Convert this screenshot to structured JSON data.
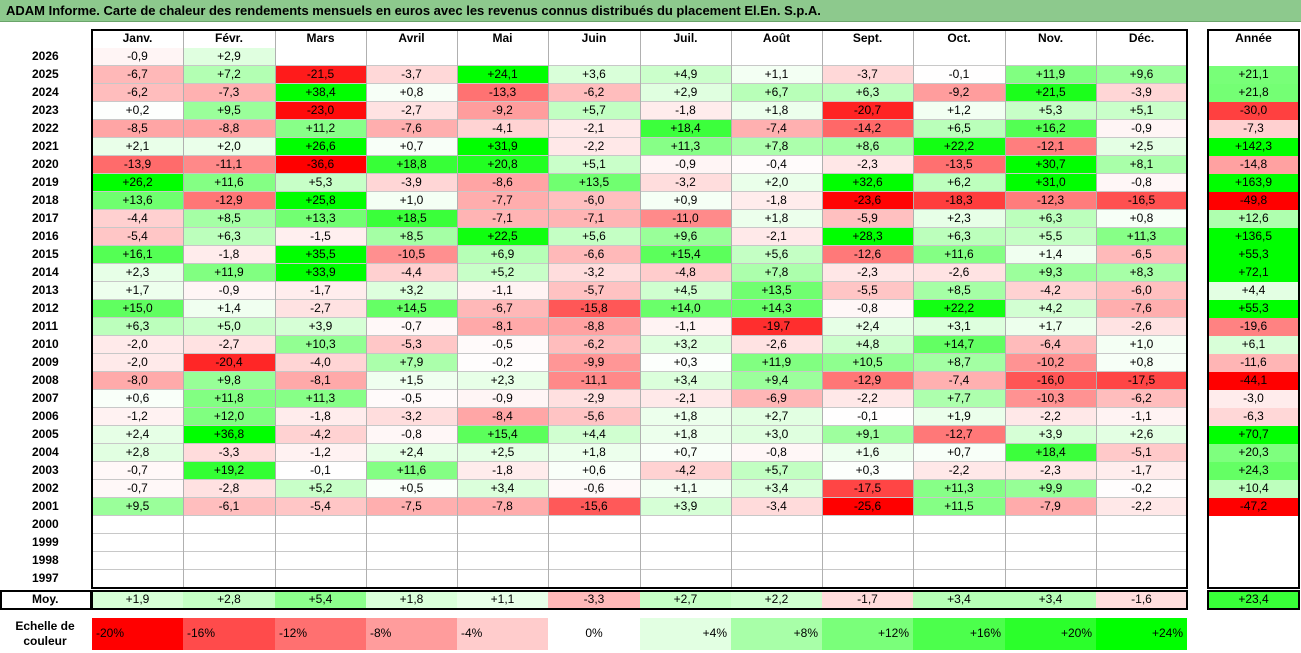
{
  "title": "ADAM Informe. Carte de chaleur des rendements mensuels en euros avec les revenus connus distribués du placement El.En. S.p.A.",
  "chart_data": {
    "type": "heatmap",
    "months": [
      "Janv.",
      "Févr.",
      "Mars",
      "Avril",
      "Mai",
      "Juin",
      "Juil.",
      "Août",
      "Sept.",
      "Oct.",
      "Nov.",
      "Déc."
    ],
    "year_header": "Année",
    "rows": [
      {
        "year": "2026",
        "values": [
          "-0,9",
          "+2,9",
          "",
          "",
          "",
          "",
          "",
          "",
          "",
          "",
          "",
          ""
        ],
        "annual": ""
      },
      {
        "year": "2025",
        "values": [
          "-6,7",
          "+7,2",
          "-21,5",
          "-3,7",
          "+24,1",
          "+3,6",
          "+4,9",
          "+1,1",
          "-3,7",
          "-0,1",
          "+11,9",
          "+9,6"
        ],
        "annual": "+21,1"
      },
      {
        "year": "2024",
        "values": [
          "-6,2",
          "-7,3",
          "+38,4",
          "+0,8",
          "-13,3",
          "-6,2",
          "+2,9",
          "+6,7",
          "+6,3",
          "-9,2",
          "+21,5",
          "-3,9"
        ],
        "annual": "+21,8"
      },
      {
        "year": "2023",
        "values": [
          "+0,2",
          "+9,5",
          "-23,0",
          "-2,7",
          "-9,2",
          "+5,7",
          "-1,8",
          "+1,8",
          "-20,7",
          "+1,2",
          "+5,3",
          "+5,1"
        ],
        "annual": "-30,0"
      },
      {
        "year": "2022",
        "values": [
          "-8,5",
          "-8,8",
          "+11,2",
          "-7,6",
          "-4,1",
          "-2,1",
          "+18,4",
          "-7,4",
          "-14,2",
          "+6,5",
          "+16,2",
          "-0,9"
        ],
        "annual": "-7,3"
      },
      {
        "year": "2021",
        "values": [
          "+2,1",
          "+2,0",
          "+26,6",
          "+0,7",
          "+31,9",
          "-2,2",
          "+11,3",
          "+7,8",
          "+8,6",
          "+22,2",
          "-12,1",
          "+2,5"
        ],
        "annual": "+142,3"
      },
      {
        "year": "2020",
        "values": [
          "-13,9",
          "-11,1",
          "-36,6",
          "+18,8",
          "+20,8",
          "+5,1",
          "-0,9",
          "-0,4",
          "-2,3",
          "-13,5",
          "+30,7",
          "+8,1"
        ],
        "annual": "-14,8"
      },
      {
        "year": "2019",
        "values": [
          "+26,2",
          "+11,6",
          "+5,3",
          "-3,9",
          "-8,6",
          "+13,5",
          "-3,2",
          "+2,0",
          "+32,6",
          "+6,2",
          "+31,0",
          "-0,8"
        ],
        "annual": "+163,9"
      },
      {
        "year": "2018",
        "values": [
          "+13,6",
          "-12,9",
          "+25,8",
          "+1,0",
          "-7,7",
          "-6,0",
          "+0,9",
          "-1,8",
          "-23,6",
          "-18,3",
          "-12,3",
          "-16,5"
        ],
        "annual": "-49,8"
      },
      {
        "year": "2017",
        "values": [
          "-4,4",
          "+8,5",
          "+13,3",
          "+18,5",
          "-7,1",
          "-7,1",
          "-11,0",
          "+1,8",
          "-5,9",
          "+2,3",
          "+6,3",
          "+0,8"
        ],
        "annual": "+12,6"
      },
      {
        "year": "2016",
        "values": [
          "-5,4",
          "+6,3",
          "-1,5",
          "+8,5",
          "+22,5",
          "+5,6",
          "+9,6",
          "-2,1",
          "+28,3",
          "+6,3",
          "+5,5",
          "+11,3"
        ],
        "annual": "+136,5"
      },
      {
        "year": "2015",
        "values": [
          "+16,1",
          "-1,8",
          "+35,5",
          "-10,5",
          "+6,9",
          "-6,6",
          "+15,4",
          "+5,6",
          "-12,6",
          "+11,6",
          "+1,4",
          "-6,5"
        ],
        "annual": "+55,3"
      },
      {
        "year": "2014",
        "values": [
          "+2,3",
          "+11,9",
          "+33,9",
          "-4,4",
          "+5,2",
          "-3,2",
          "-4,8",
          "+7,8",
          "-2,3",
          "-2,6",
          "+9,3",
          "+8,3"
        ],
        "annual": "+72,1"
      },
      {
        "year": "2013",
        "values": [
          "+1,7",
          "-0,9",
          "-1,7",
          "+3,2",
          "-1,1",
          "-5,7",
          "+4,5",
          "+13,5",
          "-5,5",
          "+8,5",
          "-4,2",
          "-6,0"
        ],
        "annual": "+4,4"
      },
      {
        "year": "2012",
        "values": [
          "+15,0",
          "+1,4",
          "-2,7",
          "+14,5",
          "-6,7",
          "-15,8",
          "+14,0",
          "+14,3",
          "-0,8",
          "+22,2",
          "+4,2",
          "-7,6"
        ],
        "annual": "+55,3"
      },
      {
        "year": "2011",
        "values": [
          "+6,3",
          "+5,0",
          "+3,9",
          "-0,7",
          "-8,1",
          "-8,8",
          "-1,1",
          "-19,7",
          "+2,4",
          "+3,1",
          "+1,7",
          "-2,6"
        ],
        "annual": "-19,6"
      },
      {
        "year": "2010",
        "values": [
          "-2,0",
          "-2,7",
          "+10,3",
          "-5,3",
          "-0,5",
          "-6,2",
          "+3,2",
          "-2,6",
          "+4,8",
          "+14,7",
          "-6,4",
          "+1,0"
        ],
        "annual": "+6,1"
      },
      {
        "year": "2009",
        "values": [
          "-2,0",
          "-20,4",
          "-4,0",
          "+7,9",
          "-0,2",
          "-9,9",
          "+0,3",
          "+11,9",
          "+10,5",
          "+8,7",
          "-10,2",
          "+0,8"
        ],
        "annual": "-11,6"
      },
      {
        "year": "2008",
        "values": [
          "-8,0",
          "+9,8",
          "-8,1",
          "+1,5",
          "+2,3",
          "-11,1",
          "+3,4",
          "+9,4",
          "-12,9",
          "-7,4",
          "-16,0",
          "-17,5"
        ],
        "annual": "-44,1"
      },
      {
        "year": "2007",
        "values": [
          "+0,6",
          "+11,8",
          "+11,3",
          "-0,5",
          "-0,9",
          "-2,9",
          "-2,1",
          "-6,9",
          "-2,2",
          "+7,7",
          "-10,3",
          "-6,2"
        ],
        "annual": "-3,0"
      },
      {
        "year": "2006",
        "values": [
          "-1,2",
          "+12,0",
          "-1,8",
          "-3,2",
          "-8,4",
          "-5,6",
          "+1,8",
          "+2,7",
          "-0,1",
          "+1,9",
          "-2,2",
          "-1,1"
        ],
        "annual": "-6,3"
      },
      {
        "year": "2005",
        "values": [
          "+2,4",
          "+36,8",
          "-4,2",
          "-0,8",
          "+15,4",
          "+4,4",
          "+1,8",
          "+3,0",
          "+9,1",
          "-12,7",
          "+3,9",
          "+2,6"
        ],
        "annual": "+70,7"
      },
      {
        "year": "2004",
        "values": [
          "+2,8",
          "-3,3",
          "-1,2",
          "+2,4",
          "+2,5",
          "+1,8",
          "+0,7",
          "-0,8",
          "+1,6",
          "+0,7",
          "+18,4",
          "-5,1"
        ],
        "annual": "+20,3"
      },
      {
        "year": "2003",
        "values": [
          "-0,7",
          "+19,2",
          "-0,1",
          "+11,6",
          "-1,8",
          "+0,6",
          "-4,2",
          "+5,7",
          "+0,3",
          "-2,2",
          "-2,3",
          "-1,7"
        ],
        "annual": "+24,3"
      },
      {
        "year": "2002",
        "values": [
          "-0,7",
          "-2,8",
          "+5,2",
          "+0,5",
          "+3,4",
          "-0,6",
          "+1,1",
          "+3,4",
          "-17,5",
          "+11,3",
          "+9,9",
          "-0,2"
        ],
        "annual": "+10,4"
      },
      {
        "year": "2001",
        "values": [
          "+9,5",
          "-6,1",
          "-5,4",
          "-7,5",
          "-7,8",
          "-15,6",
          "+3,9",
          "-3,4",
          "-25,6",
          "+11,5",
          "-7,9",
          "-2,2"
        ],
        "annual": "-47,2"
      },
      {
        "year": "2000",
        "values": [
          "",
          "",
          "",
          "",
          "",
          "",
          "",
          "",
          "",
          "",
          "",
          ""
        ],
        "annual": ""
      },
      {
        "year": "1999",
        "values": [
          "",
          "",
          "",
          "",
          "",
          "",
          "",
          "",
          "",
          "",
          "",
          ""
        ],
        "annual": ""
      },
      {
        "year": "1998",
        "values": [
          "",
          "",
          "",
          "",
          "",
          "",
          "",
          "",
          "",
          "",
          "",
          ""
        ],
        "annual": ""
      },
      {
        "year": "1997",
        "values": [
          "",
          "",
          "",
          "",
          "",
          "",
          "",
          "",
          "",
          "",
          "",
          ""
        ],
        "annual": ""
      }
    ],
    "average": {
      "label": "Moy.",
      "values": [
        "+1,9",
        "+2,8",
        "+5,4",
        "+1,8",
        "+1,1",
        "-3,3",
        "+2,7",
        "+2,2",
        "-1,7",
        "+3,4",
        "+3,4",
        "-1,6"
      ],
      "annual": "+23,4"
    },
    "scale": {
      "label_line1": "Echelle de",
      "label_line2": "couleur",
      "steps": [
        "-20%",
        "-16%",
        "-12%",
        "-8%",
        "-4%",
        "0%",
        "+4%",
        "+8%",
        "+12%",
        "+16%",
        "+20%",
        "+24%"
      ],
      "colors": [
        "#ff0000",
        "#ff4b4b",
        "#ff7070",
        "#ff9c9c",
        "#ffcccc",
        "#ffffff",
        "#e2ffe2",
        "#a8ffa8",
        "#7aff7a",
        "#4cff4c",
        "#2bff2b",
        "#00ff00"
      ]
    }
  }
}
